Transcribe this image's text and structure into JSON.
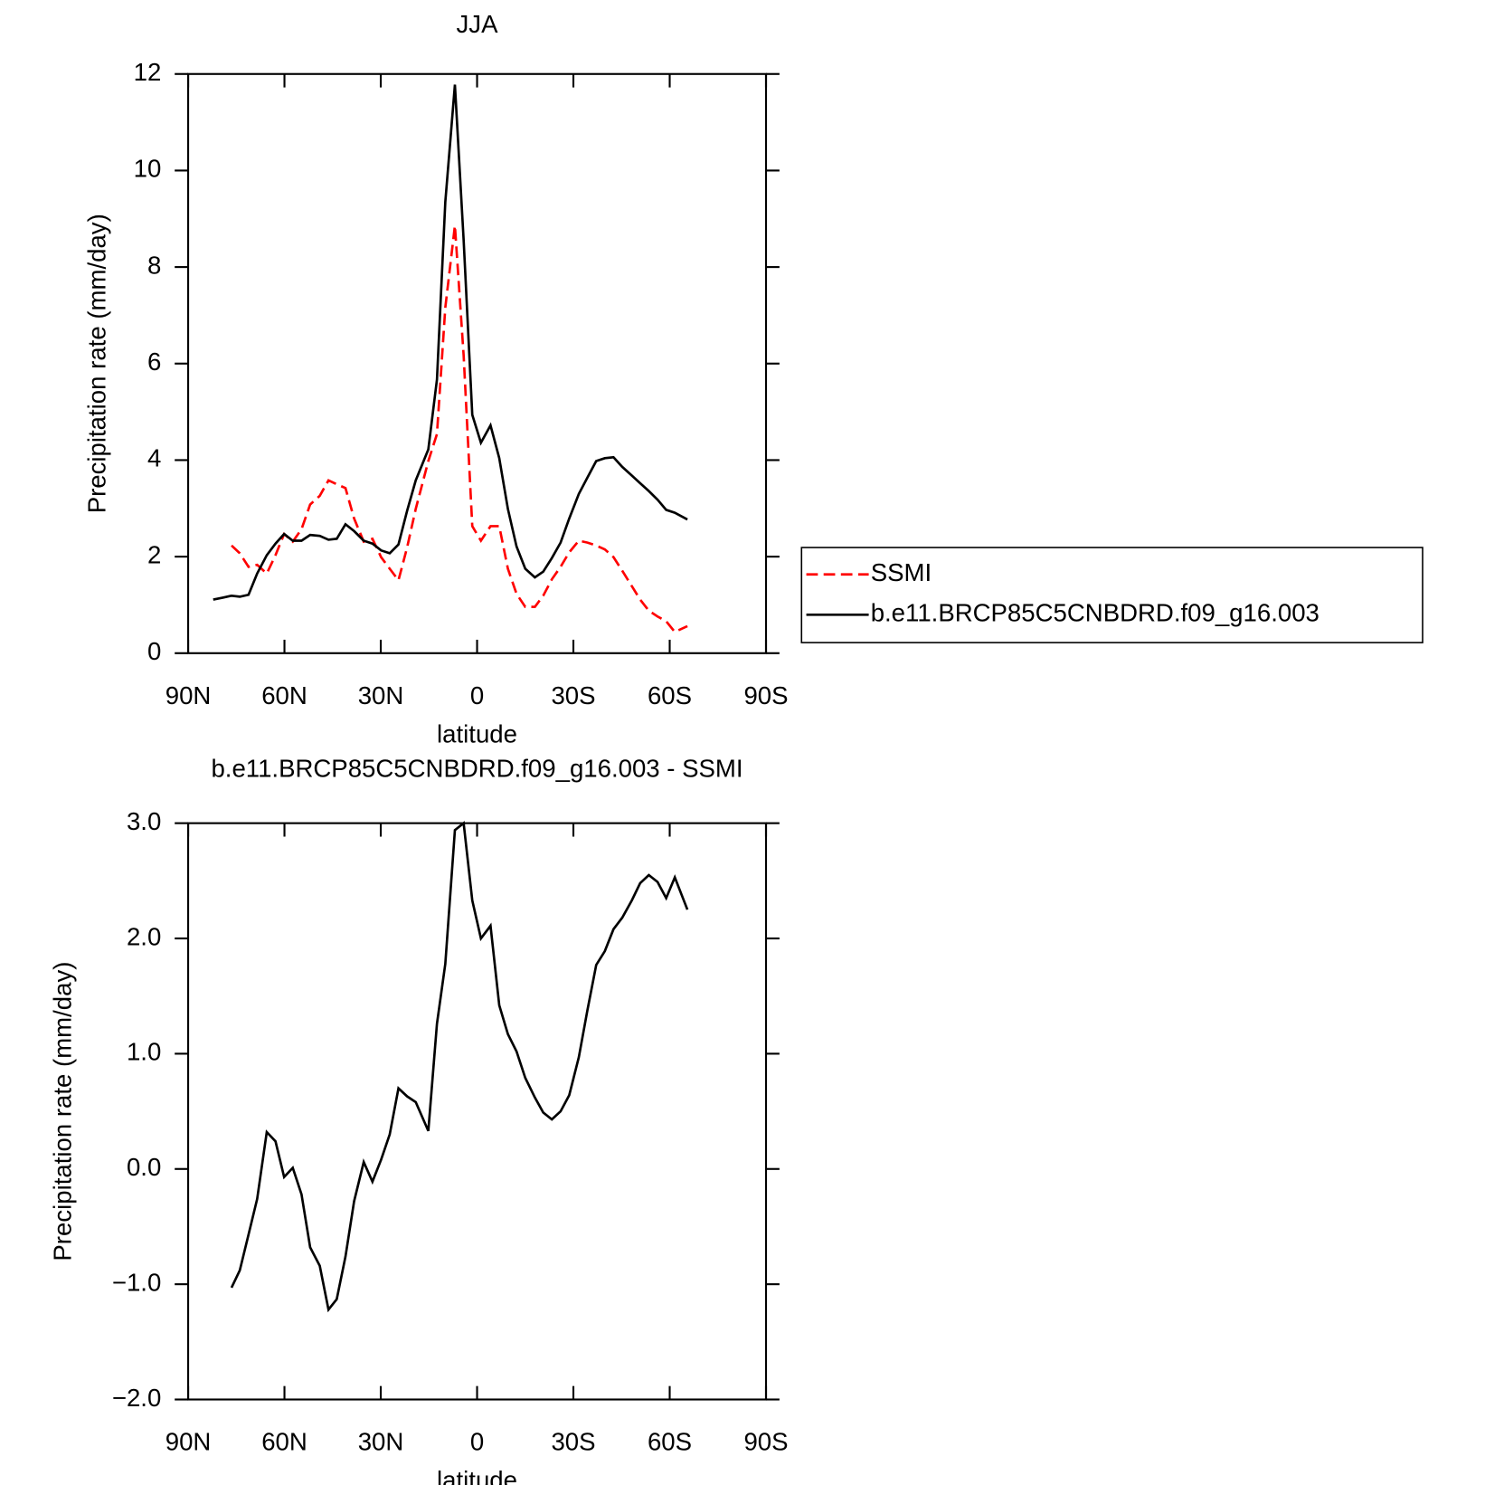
{
  "chart_data": [
    {
      "type": "line",
      "title": "JJA",
      "xlabel": "latitude",
      "ylabel": "Precipitation rate (mm/day)",
      "x": [
        82.2,
        79.2,
        76.5,
        73.9,
        71.2,
        68.5,
        65.5,
        62.8,
        60.1,
        57.4,
        54.7,
        52.0,
        49.0,
        46.3,
        43.7,
        41.0,
        38.3,
        35.3,
        32.6,
        29.9,
        27.2,
        24.5,
        21.8,
        19.1,
        15.2,
        12.5,
        9.9,
        6.9,
        4.2,
        1.5,
        -1.2,
        -4.2,
        -6.9,
        -9.6,
        -12.3,
        -15.0,
        -18.0,
        -20.6,
        -23.3,
        -26.0,
        -28.7,
        -31.7,
        -34.4,
        -37.1,
        -39.8,
        -42.5,
        -45.2,
        -48.2,
        -50.8,
        -53.5,
        -56.2,
        -58.9,
        -61.6,
        -65.5
      ],
      "series": [
        {
          "name": "SSMI",
          "color": "#ff0000",
          "style": "dashed",
          "values": [
            null,
            null,
            2.23,
            2.07,
            1.79,
            1.83,
            1.65,
            2.03,
            2.47,
            2.31,
            2.57,
            3.08,
            3.26,
            3.58,
            3.5,
            3.42,
            2.79,
            2.31,
            2.37,
            1.99,
            1.75,
            1.51,
            2.19,
            2.99,
            3.98,
            4.54,
            7.16,
            8.86,
            6.17,
            2.63,
            2.33,
            2.63,
            2.63,
            1.75,
            1.23,
            0.96,
            0.96,
            1.19,
            1.53,
            1.79,
            2.09,
            2.33,
            2.29,
            2.23,
            2.15,
            1.99,
            1.71,
            1.39,
            1.11,
            0.88,
            0.76,
            0.66,
            0.44,
            0.56
          ]
        },
        {
          "name": "b.e11.BRCP85C5CNBDRD.f09_g16.003",
          "color": "#000000",
          "style": "solid",
          "values": [
            1.11,
            1.15,
            1.19,
            1.17,
            1.21,
            1.65,
            2.03,
            2.27,
            2.47,
            2.33,
            2.33,
            2.45,
            2.43,
            2.35,
            2.37,
            2.67,
            2.53,
            2.33,
            2.27,
            2.13,
            2.07,
            2.25,
            2.95,
            3.58,
            4.22,
            5.67,
            9.35,
            11.78,
            8.56,
            4.94,
            4.36,
            4.72,
            4.04,
            2.99,
            2.21,
            1.75,
            1.57,
            1.69,
            1.97,
            2.29,
            2.79,
            3.3,
            3.64,
            3.98,
            4.04,
            4.06,
            3.86,
            3.68,
            3.52,
            3.36,
            3.18,
            2.97,
            2.91,
            2.77
          ]
        }
      ],
      "xlim": [
        90,
        -90
      ],
      "xticks": [
        {
          "value": 90,
          "label": "90N"
        },
        {
          "value": 60,
          "label": "60N"
        },
        {
          "value": 30,
          "label": "30N"
        },
        0,
        {
          "value": -30,
          "label": "30S"
        },
        {
          "value": -60,
          "label": "60S"
        },
        {
          "value": -90,
          "label": "90S"
        }
      ],
      "ylim": [
        0,
        12
      ],
      "yticks": [
        0,
        2,
        4,
        6,
        8,
        10,
        12
      ],
      "legend": "right"
    },
    {
      "type": "line",
      "title": "b.e11.BRCP85C5CNBDRD.f09_g16.003 - SSMI",
      "xlabel": "latitude",
      "ylabel": "Precipitation rate (mm/day)",
      "x": [
        76.5,
        73.9,
        71.2,
        68.5,
        65.5,
        62.8,
        60.1,
        57.4,
        54.7,
        52.0,
        49.0,
        46.3,
        43.7,
        41.0,
        38.3,
        35.3,
        32.6,
        29.9,
        27.2,
        24.5,
        21.8,
        19.1,
        15.2,
        12.5,
        9.9,
        6.9,
        4.2,
        1.5,
        -1.2,
        -4.2,
        -6.9,
        -9.6,
        -12.3,
        -15.0,
        -18.0,
        -20.6,
        -23.3,
        -26.0,
        -28.7,
        -31.7,
        -34.4,
        -37.1,
        -39.8,
        -42.5,
        -45.2,
        -48.2,
        -50.8,
        -53.5,
        -56.2,
        -58.9,
        -61.6,
        -65.5
      ],
      "series": [
        {
          "color": "#000000",
          "style": "solid",
          "values": [
            -1.03,
            -0.88,
            -0.57,
            -0.26,
            0.32,
            0.24,
            -0.07,
            0.01,
            -0.22,
            -0.68,
            -0.84,
            -1.22,
            -1.13,
            -0.76,
            -0.28,
            0.06,
            -0.11,
            0.08,
            0.3,
            0.7,
            0.63,
            0.58,
            0.33,
            1.26,
            1.78,
            2.94,
            3.0,
            2.33,
            2.0,
            2.11,
            1.42,
            1.17,
            1.02,
            0.79,
            0.62,
            0.49,
            0.43,
            0.5,
            0.64,
            0.97,
            1.38,
            1.77,
            1.89,
            2.08,
            2.18,
            2.33,
            2.48,
            2.55,
            2.49,
            2.35,
            2.53,
            2.25
          ]
        }
      ],
      "xlim": [
        90,
        -90
      ],
      "xticks": [
        {
          "value": 90,
          "label": "90N"
        },
        {
          "value": 60,
          "label": "60N"
        },
        {
          "value": 30,
          "label": "30N"
        },
        0,
        {
          "value": -30,
          "label": "30S"
        },
        {
          "value": -60,
          "label": "60S"
        },
        {
          "value": -90,
          "label": "90S"
        }
      ],
      "ylim": [
        -2,
        3
      ],
      "yticks": [
        {
          "value": -2,
          "label": "−2.0"
        },
        {
          "value": -1,
          "label": "−1.0"
        },
        {
          "value": 0,
          "label": "0.0"
        },
        {
          "value": 1,
          "label": "1.0"
        },
        {
          "value": 2,
          "label": "2.0"
        },
        {
          "value": 3,
          "label": "3.0"
        }
      ]
    }
  ]
}
